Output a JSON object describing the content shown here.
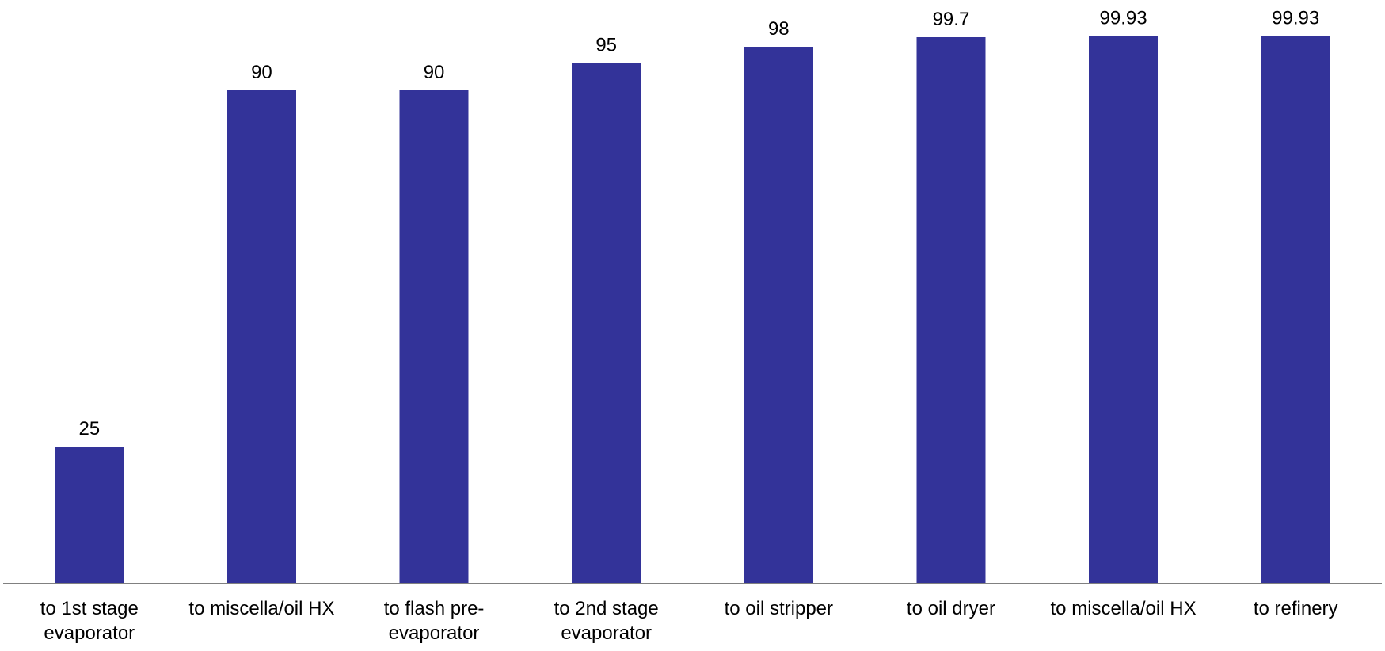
{
  "chart_data": {
    "type": "bar",
    "categories": [
      "to 1st stage evaporator",
      "to miscella/oil HX",
      "to flash pre-evaporator",
      "to 2nd stage evaporator",
      "to oil stripper",
      "to oil dryer",
      "to miscella/oil HX",
      "to refinery"
    ],
    "category_lines": [
      [
        "to 1st stage",
        "evaporator"
      ],
      [
        "to miscella/oil HX"
      ],
      [
        "to flash pre-",
        "evaporator"
      ],
      [
        "to 2nd stage",
        "evaporator"
      ],
      [
        "to oil stripper"
      ],
      [
        "to oil dryer"
      ],
      [
        "to miscella/oil HX"
      ],
      [
        "to refinery"
      ]
    ],
    "values": [
      25,
      90,
      90,
      95,
      98,
      99.7,
      99.93,
      99.93
    ],
    "data_labels": [
      "25",
      "90",
      "90",
      "95",
      "98",
      "99.7",
      "99.93",
      "99.93"
    ],
    "ylim": [
      0,
      100
    ],
    "grid": false,
    "legend": "none",
    "bar_color": "#333399",
    "axis_color": "#808080"
  }
}
